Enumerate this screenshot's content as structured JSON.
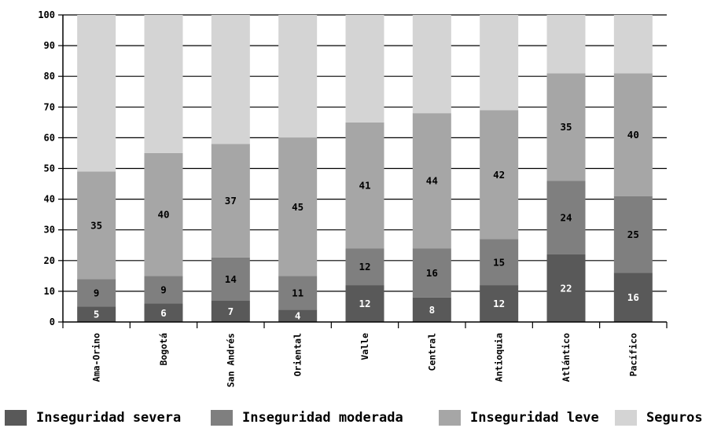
{
  "chart_data": {
    "type": "bar",
    "stacked": true,
    "categories": [
      "Ama-Orino",
      "Bogotá",
      "San Andrés",
      "Oriental",
      "Valle",
      "Central",
      "Antioquia",
      "Atlántico",
      "Pacífico"
    ],
    "series": [
      {
        "name": "Inseguridad severa",
        "values": [
          5,
          6,
          7,
          4,
          12,
          8,
          12,
          22,
          16
        ]
      },
      {
        "name": "Inseguridad moderada",
        "values": [
          9,
          9,
          14,
          11,
          12,
          16,
          15,
          24,
          25
        ]
      },
      {
        "name": "Inseguridad leve",
        "values": [
          35,
          40,
          37,
          45,
          41,
          44,
          42,
          35,
          40
        ]
      },
      {
        "name": "Seguros",
        "values": [
          51,
          45,
          42,
          40,
          35,
          32,
          31,
          19,
          19
        ]
      }
    ],
    "labeled_series": [
      0,
      1,
      2
    ],
    "ylim": [
      0,
      100
    ],
    "yticks": [
      "0",
      "10",
      "20",
      "30",
      "40",
      "50",
      "60",
      "70",
      "80",
      "90",
      "100"
    ],
    "grid": true,
    "legend_position": "bottom",
    "title": "",
    "xlabel": "",
    "ylabel": ""
  },
  "colors": {
    "series": [
      "#595959",
      "#7f7f7f",
      "#a6a6a6",
      "#d4d4d4"
    ],
    "label_light": "#ffffff",
    "label_dark": "#000000",
    "axis": "#000000"
  }
}
